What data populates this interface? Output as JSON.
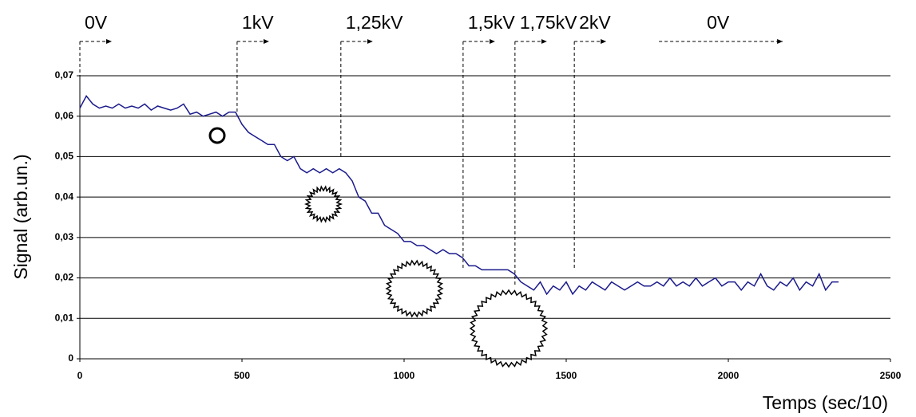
{
  "chart_data": {
    "type": "line",
    "y_label": "Signal (arb.un.)",
    "x_label": "Temps (sec/10)",
    "xlim": [
      0,
      2500
    ],
    "xticks": [
      0,
      500,
      1000,
      1500,
      2000,
      2500
    ],
    "ylim": [
      0,
      0.07
    ],
    "yticks": [
      0,
      {
        "value": 0.01,
        "label": "0,01"
      },
      {
        "value": 0.02,
        "label": "0,02"
      },
      {
        "value": 0.03,
        "label": "0,03"
      },
      {
        "value": 0.04,
        "label": "0,04"
      },
      {
        "value": 0.05,
        "label": "0,05"
      },
      {
        "value": 0.06,
        "label": "0,06"
      },
      {
        "value": 0.07,
        "label": "0,07"
      }
    ],
    "grid": true,
    "markers": [
      {
        "label": "0V",
        "x": 0,
        "y": 0.062
      },
      {
        "label": "1kV",
        "x": 485,
        "y": 0.061
      },
      {
        "label": "1,25kV",
        "x": 805,
        "y": 0.05
      },
      {
        "label": "1,5kV",
        "x": 1182,
        "y": 0.022
      },
      {
        "label": "1,75kV",
        "x": 1342,
        "y": 0.018
      },
      {
        "label": "2kV",
        "x": 1525,
        "y": 0.022
      },
      {
        "label": "0V",
        "x": 1786,
        "y": null
      }
    ],
    "series": [
      {
        "color": "#1a1a8c",
        "x": [
          0,
          20,
          40,
          60,
          80,
          100,
          120,
          140,
          160,
          180,
          200,
          220,
          240,
          260,
          280,
          300,
          320,
          340,
          360,
          380,
          400,
          420,
          440,
          460,
          480,
          500,
          520,
          540,
          560,
          580,
          600,
          620,
          640,
          660,
          680,
          700,
          720,
          740,
          760,
          780,
          800,
          820,
          840,
          860,
          880,
          900,
          920,
          940,
          960,
          980,
          1000,
          1020,
          1040,
          1060,
          1080,
          1100,
          1120,
          1140,
          1160,
          1180,
          1200,
          1220,
          1240,
          1260,
          1280,
          1300,
          1320,
          1340,
          1360,
          1380,
          1400,
          1420,
          1440,
          1460,
          1480,
          1500,
          1520,
          1540,
          1560,
          1580,
          1600,
          1620,
          1640,
          1660,
          1680,
          1700,
          1720,
          1740,
          1760,
          1780,
          1800,
          1820,
          1840,
          1860,
          1880,
          1900,
          1920,
          1940,
          1960,
          1980,
          2000,
          2020,
          2040,
          2060,
          2080,
          2100,
          2120,
          2140,
          2160,
          2180,
          2200,
          2220,
          2240,
          2260,
          2280,
          2300,
          2320,
          2340
        ],
        "values": [
          0.062,
          0.065,
          0.063,
          0.062,
          0.0625,
          0.062,
          0.063,
          0.062,
          0.0625,
          0.062,
          0.063,
          0.0615,
          0.0625,
          0.062,
          0.0615,
          0.062,
          0.063,
          0.0605,
          0.061,
          0.06,
          0.0605,
          0.061,
          0.06,
          0.061,
          0.061,
          0.058,
          0.056,
          0.055,
          0.054,
          0.053,
          0.053,
          0.05,
          0.049,
          0.05,
          0.047,
          0.046,
          0.047,
          0.046,
          0.047,
          0.046,
          0.047,
          0.046,
          0.044,
          0.04,
          0.039,
          0.036,
          0.036,
          0.033,
          0.032,
          0.031,
          0.029,
          0.029,
          0.028,
          0.028,
          0.027,
          0.026,
          0.027,
          0.026,
          0.026,
          0.025,
          0.023,
          0.023,
          0.022,
          0.022,
          0.022,
          0.022,
          0.022,
          0.021,
          0.019,
          0.018,
          0.017,
          0.019,
          0.016,
          0.018,
          0.017,
          0.019,
          0.016,
          0.018,
          0.017,
          0.019,
          0.018,
          0.017,
          0.019,
          0.018,
          0.017,
          0.018,
          0.019,
          0.018,
          0.018,
          0.019,
          0.018,
          0.02,
          0.018,
          0.019,
          0.018,
          0.02,
          0.018,
          0.019,
          0.02,
          0.018,
          0.019,
          0.019,
          0.017,
          0.019,
          0.018,
          0.021,
          0.018,
          0.017,
          0.019,
          0.018,
          0.02,
          0.017,
          0.019,
          0.018,
          0.021,
          0.017,
          0.019,
          0.019
        ]
      }
    ]
  }
}
